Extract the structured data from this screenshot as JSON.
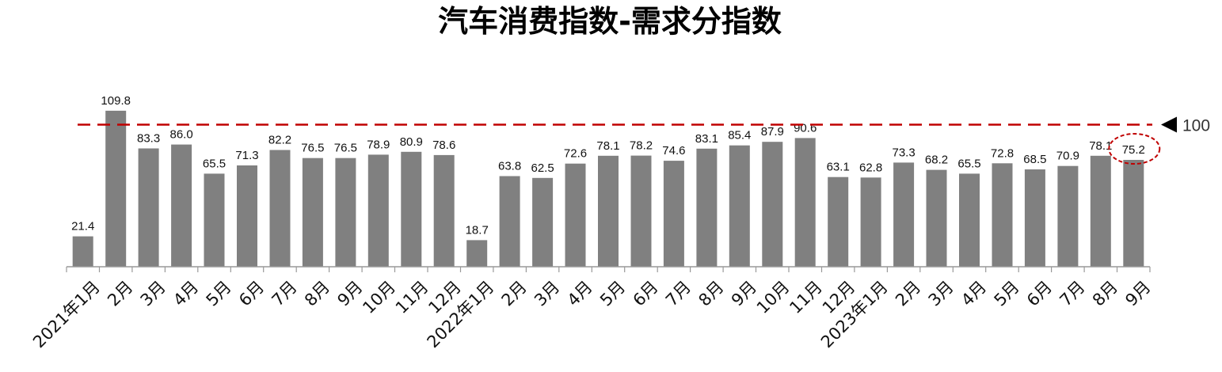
{
  "colors": {
    "bar": "#808080",
    "reference_line": "#c00000",
    "axis": "#999999",
    "highlight_circle": "#c00000"
  },
  "chart_data": {
    "type": "bar",
    "title": "汽车消费指数-需求分指数",
    "categories": [
      "2021年1月",
      "2月",
      "3月",
      "4月",
      "5月",
      "6月",
      "7月",
      "8月",
      "9月",
      "10月",
      "11月",
      "12月",
      "2022年1月",
      "2月",
      "3月",
      "4月",
      "5月",
      "6月",
      "7月",
      "8月",
      "9月",
      "10月",
      "11月",
      "12月",
      "2023年1月",
      "2月",
      "3月",
      "4月",
      "5月",
      "6月",
      "7月",
      "8月",
      "9月"
    ],
    "values": [
      21.4,
      109.8,
      83.3,
      86.0,
      65.5,
      71.3,
      82.2,
      76.5,
      76.5,
      78.9,
      80.9,
      78.6,
      18.7,
      63.8,
      62.5,
      72.6,
      78.1,
      78.2,
      74.6,
      83.1,
      85.4,
      87.9,
      90.6,
      63.1,
      62.8,
      73.3,
      68.2,
      65.5,
      72.8,
      68.5,
      70.9,
      78.1,
      75.2
    ],
    "value_labels": [
      "21.4",
      "109.8",
      "83.3",
      "86.0",
      "65.5",
      "71.3",
      "82.2",
      "76.5",
      "76.5",
      "78.9",
      "80.9",
      "78.6",
      "18.7",
      "63.8",
      "62.5",
      "72.6",
      "78.1",
      "78.2",
      "74.6",
      "83.1",
      "85.4",
      "87.9",
      "90.6",
      "63.1",
      "62.8",
      "73.3",
      "68.2",
      "65.5",
      "72.8",
      "68.5",
      "70.9",
      "78.1",
      "75.2"
    ],
    "reference_line": {
      "value": 100,
      "label": "100",
      "style": "dashed"
    },
    "highlight_index": 32,
    "ylim": [
      0,
      110
    ],
    "xlabel": "",
    "ylabel": "",
    "grid": false,
    "legend": "none"
  }
}
